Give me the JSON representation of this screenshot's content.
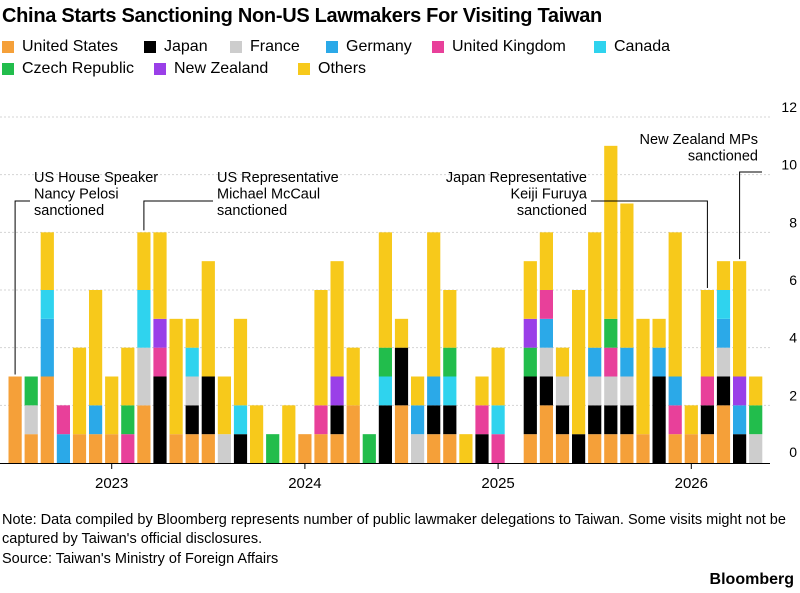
{
  "chart_data": {
    "type": "bar",
    "stacked": true,
    "title": "China Starts Sanctioning Non-US Lawmakers For Visiting Taiwan",
    "xlabel": "",
    "ylabel": "",
    "ylim": [
      0,
      12
    ],
    "y_ticks": [
      0,
      2,
      4,
      6,
      8,
      10,
      12
    ],
    "y_axis_side": "right",
    "grid": true,
    "legend_position": "top",
    "x_tick_labels": [
      {
        "label": "2023",
        "month_index": 6
      },
      {
        "label": "2024",
        "month_index": 18
      },
      {
        "label": "2025",
        "month_index": 30
      },
      {
        "label": "2026",
        "month_index": 42
      }
    ],
    "series": [
      {
        "name": "United States",
        "color": "#f5a039"
      },
      {
        "name": "Japan",
        "color": "#000000"
      },
      {
        "name": "France",
        "color": "#cdcdcd"
      },
      {
        "name": "Germany",
        "color": "#2ba9e8"
      },
      {
        "name": "United Kingdom",
        "color": "#e8409a"
      },
      {
        "name": "Canada",
        "color": "#2fd3ee"
      },
      {
        "name": "Czech Republic",
        "color": "#22bd4c"
      },
      {
        "name": "New Zealand",
        "color": "#9a3fe8"
      },
      {
        "name": "Others",
        "color": "#f7c91b"
      }
    ],
    "months": [
      {
        "i": 0,
        "stack": [
          [
            "United States",
            3
          ]
        ]
      },
      {
        "i": 1,
        "stack": [
          [
            "United States",
            1
          ],
          [
            "France",
            1
          ],
          [
            "Czech Republic",
            1
          ]
        ]
      },
      {
        "i": 2,
        "stack": [
          [
            "United States",
            3
          ],
          [
            "Germany",
            2
          ],
          [
            "Canada",
            1
          ],
          [
            "Others",
            2
          ]
        ]
      },
      {
        "i": 3,
        "stack": [
          [
            "Germany",
            1
          ],
          [
            "United Kingdom",
            1
          ]
        ]
      },
      {
        "i": 4,
        "stack": [
          [
            "United States",
            1
          ],
          [
            "Others",
            3
          ]
        ]
      },
      {
        "i": 5,
        "stack": [
          [
            "United States",
            1
          ],
          [
            "Germany",
            1
          ],
          [
            "Others",
            4
          ]
        ]
      },
      {
        "i": 6,
        "stack": [
          [
            "United States",
            1
          ],
          [
            "Others",
            2
          ]
        ]
      },
      {
        "i": 7,
        "stack": [
          [
            "United Kingdom",
            1
          ],
          [
            "Czech Republic",
            1
          ],
          [
            "Others",
            2
          ]
        ]
      },
      {
        "i": 8,
        "stack": [
          [
            "United States",
            2
          ],
          [
            "France",
            2
          ],
          [
            "Canada",
            2
          ],
          [
            "Others",
            2
          ]
        ]
      },
      {
        "i": 9,
        "stack": [
          [
            "Japan",
            3
          ],
          [
            "United Kingdom",
            1
          ],
          [
            "New Zealand",
            1
          ],
          [
            "Others",
            3
          ]
        ]
      },
      {
        "i": 10,
        "stack": [
          [
            "United States",
            1
          ],
          [
            "Others",
            4
          ]
        ]
      },
      {
        "i": 11,
        "stack": [
          [
            "United States",
            1
          ],
          [
            "Japan",
            1
          ],
          [
            "France",
            1
          ],
          [
            "Canada",
            1
          ],
          [
            "Others",
            1
          ]
        ]
      },
      {
        "i": 12,
        "stack": [
          [
            "United States",
            1
          ],
          [
            "Japan",
            2
          ],
          [
            "Others",
            4
          ]
        ]
      },
      {
        "i": 13,
        "stack": [
          [
            "France",
            1
          ],
          [
            "Others",
            2
          ]
        ]
      },
      {
        "i": 14,
        "stack": [
          [
            "Japan",
            1
          ],
          [
            "Canada",
            1
          ],
          [
            "Others",
            3
          ]
        ]
      },
      {
        "i": 15,
        "stack": [
          [
            "Others",
            2
          ]
        ]
      },
      {
        "i": 16,
        "stack": [
          [
            "Czech Republic",
            1
          ]
        ]
      },
      {
        "i": 17,
        "stack": [
          [
            "Others",
            2
          ]
        ]
      },
      {
        "i": 18,
        "stack": [
          [
            "United States",
            1
          ]
        ]
      },
      {
        "i": 19,
        "stack": [
          [
            "United States",
            1
          ],
          [
            "United Kingdom",
            1
          ],
          [
            "Others",
            4
          ]
        ]
      },
      {
        "i": 20,
        "stack": [
          [
            "United States",
            1
          ],
          [
            "Japan",
            1
          ],
          [
            "New Zealand",
            1
          ],
          [
            "Others",
            4
          ]
        ]
      },
      {
        "i": 21,
        "stack": [
          [
            "United States",
            2
          ],
          [
            "Others",
            2
          ]
        ]
      },
      {
        "i": 22,
        "stack": [
          [
            "Czech Republic",
            1
          ]
        ]
      },
      {
        "i": 23,
        "stack": [
          [
            "Japan",
            2
          ],
          [
            "Canada",
            1
          ],
          [
            "Czech Republic",
            1
          ],
          [
            "Others",
            4
          ]
        ]
      },
      {
        "i": 24,
        "stack": [
          [
            "United States",
            2
          ],
          [
            "Japan",
            2
          ],
          [
            "Others",
            1
          ]
        ]
      },
      {
        "i": 25,
        "stack": [
          [
            "France",
            1
          ],
          [
            "Germany",
            1
          ],
          [
            "Others",
            1
          ]
        ]
      },
      {
        "i": 26,
        "stack": [
          [
            "United States",
            1
          ],
          [
            "Japan",
            1
          ],
          [
            "Germany",
            1
          ],
          [
            "Others",
            5
          ]
        ]
      },
      {
        "i": 27,
        "stack": [
          [
            "United States",
            1
          ],
          [
            "Japan",
            1
          ],
          [
            "Canada",
            1
          ],
          [
            "Czech Republic",
            1
          ],
          [
            "Others",
            2
          ]
        ]
      },
      {
        "i": 28,
        "stack": [
          [
            "Others",
            1
          ]
        ]
      },
      {
        "i": 29,
        "stack": [
          [
            "Japan",
            1
          ],
          [
            "United Kingdom",
            1
          ],
          [
            "Others",
            1
          ]
        ]
      },
      {
        "i": 30,
        "stack": [
          [
            "United Kingdom",
            1
          ],
          [
            "Canada",
            1
          ],
          [
            "Others",
            2
          ]
        ]
      },
      {
        "i": 31,
        "stack": []
      },
      {
        "i": 32,
        "stack": [
          [
            "United States",
            1
          ],
          [
            "Japan",
            2
          ],
          [
            "Czech Republic",
            1
          ],
          [
            "New Zealand",
            1
          ],
          [
            "Others",
            2
          ]
        ]
      },
      {
        "i": 33,
        "stack": [
          [
            "United States",
            2
          ],
          [
            "Japan",
            1
          ],
          [
            "France",
            1
          ],
          [
            "Germany",
            1
          ],
          [
            "United Kingdom",
            1
          ],
          [
            "Others",
            2
          ]
        ]
      },
      {
        "i": 34,
        "stack": [
          [
            "United States",
            1
          ],
          [
            "Japan",
            1
          ],
          [
            "France",
            1
          ],
          [
            "Others",
            1
          ]
        ]
      },
      {
        "i": 35,
        "stack": [
          [
            "Japan",
            1
          ],
          [
            "Others",
            5
          ]
        ]
      },
      {
        "i": 36,
        "stack": [
          [
            "United States",
            1
          ],
          [
            "Japan",
            1
          ],
          [
            "France",
            1
          ],
          [
            "Germany",
            1
          ],
          [
            "Others",
            4
          ]
        ]
      },
      {
        "i": 37,
        "stack": [
          [
            "United States",
            1
          ],
          [
            "Japan",
            1
          ],
          [
            "France",
            1
          ],
          [
            "United Kingdom",
            1
          ],
          [
            "Czech Republic",
            1
          ],
          [
            "Others",
            6
          ]
        ]
      },
      {
        "i": 38,
        "stack": [
          [
            "United States",
            1
          ],
          [
            "Japan",
            1
          ],
          [
            "France",
            1
          ],
          [
            "Germany",
            1
          ],
          [
            "Others",
            5
          ]
        ]
      },
      {
        "i": 39,
        "stack": [
          [
            "United States",
            1
          ],
          [
            "Others",
            4
          ]
        ]
      },
      {
        "i": 40,
        "stack": [
          [
            "Japan",
            3
          ],
          [
            "Germany",
            1
          ],
          [
            "Others",
            1
          ]
        ]
      },
      {
        "i": 41,
        "stack": [
          [
            "United States",
            1
          ],
          [
            "United Kingdom",
            1
          ],
          [
            "Germany",
            1
          ],
          [
            "Others",
            5
          ]
        ]
      },
      {
        "i": 42,
        "stack": [
          [
            "United States",
            1
          ],
          [
            "Others",
            1
          ]
        ]
      },
      {
        "i": 43,
        "stack": [
          [
            "United States",
            1
          ],
          [
            "Japan",
            1
          ],
          [
            "United Kingdom",
            1
          ],
          [
            "Others",
            3
          ]
        ]
      },
      {
        "i": 44,
        "stack": [
          [
            "United States",
            2
          ],
          [
            "Japan",
            1
          ],
          [
            "France",
            1
          ],
          [
            "Germany",
            1
          ],
          [
            "Canada",
            1
          ],
          [
            "Others",
            1
          ]
        ]
      },
      {
        "i": 45,
        "stack": [
          [
            "Japan",
            1
          ],
          [
            "Germany",
            1
          ],
          [
            "New Zealand",
            1
          ],
          [
            "Others",
            4
          ]
        ]
      },
      {
        "i": 46,
        "stack": [
          [
            "France",
            1
          ],
          [
            "Czech Republic",
            1
          ],
          [
            "Others",
            1
          ]
        ]
      }
    ],
    "annotations": [
      {
        "lines": [
          "US House Speaker",
          "Nancy Pelosi",
          "sanctioned"
        ],
        "month_index": 0,
        "align": "left"
      },
      {
        "lines": [
          "US Representative",
          "Michael McCaul",
          "sanctioned"
        ],
        "month_index": 8,
        "align": "left"
      },
      {
        "lines": [
          "Japan Representative",
          "Keiji Furuya",
          "sanctioned"
        ],
        "month_index": 43,
        "align": "right"
      },
      {
        "lines": [
          "New Zealand MPs",
          "sanctioned"
        ],
        "month_index": 45,
        "align": "right"
      }
    ]
  },
  "note": "Note: Data compiled by Bloomberg represents number of public lawmaker delegations to Taiwan. Some visits might not be captured by Taiwan's official disclosures.",
  "source": "Source: Taiwan's Ministry of Foreign Affairs",
  "brand": "Bloomberg"
}
